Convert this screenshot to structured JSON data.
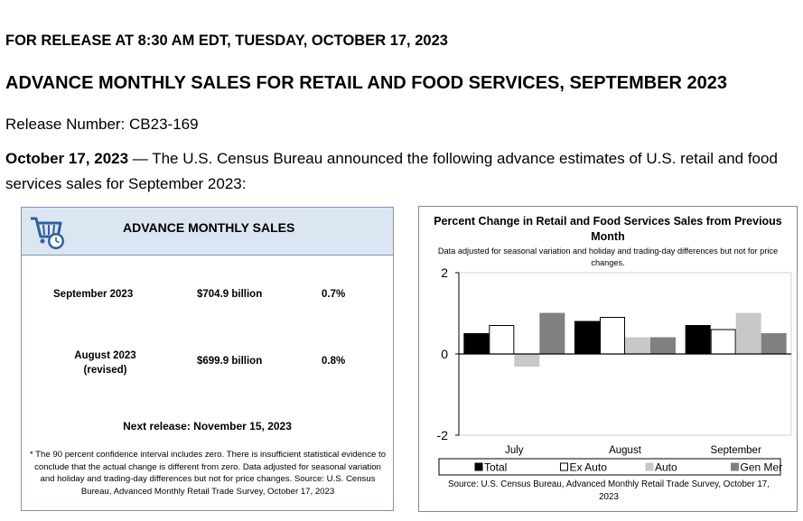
{
  "header": {
    "release_line": "FOR RELEASE AT 8:30 AM EDT, TUESDAY, OCTOBER 17, 2023",
    "title": "ADVANCE MONTHLY SALES FOR RETAIL AND FOOD SERVICES, SEPTEMBER 2023",
    "release_number": "Release Number: CB23-169",
    "intro_date": "October 17, 2023",
    "intro_text": " — The U.S. Census Bureau announced the following advance estimates of U.S. retail and food services sales for September 2023:"
  },
  "sales_box": {
    "title": "ADVANCE MONTHLY SALES",
    "rows": [
      {
        "period": "September 2023",
        "period_note": "",
        "amount": "$704.9 billion",
        "change": "0.7%"
      },
      {
        "period": "August 2023",
        "period_note": "(revised)",
        "amount": "$699.9 billion",
        "change": "0.8%"
      }
    ],
    "next_release": "Next release: November 15, 2023",
    "footnote": "* The 90 percent confidence interval includes zero. There is insufficient statistical evidence to conclude that the actual change is different from zero. Data adjusted for seasonal variation and holiday and trading-day differences but not for price changes. Source: U.S. Census Bureau, Advanced Monthly Retail Trade Survey, October 17, 2023"
  },
  "chart_panel": {
    "source": "Source: U.S. Census Bureau, Advanced Monthly Retail Trade Survey, October 17, 2023"
  },
  "chart_data": {
    "type": "bar",
    "title": "Percent Change in Retail and Food Services Sales from Previous Month",
    "subtitle": "Data adjusted for seasonal variation and holiday and trading-day differences but not for price changes.",
    "categories": [
      "July",
      "August",
      "September"
    ],
    "series": [
      {
        "name": "Total",
        "values": [
          0.5,
          0.8,
          0.7
        ],
        "fill": "#000000",
        "stroke": "#000000"
      },
      {
        "name": "Ex Auto",
        "values": [
          0.7,
          0.9,
          0.6
        ],
        "fill": "#ffffff",
        "stroke": "#000000"
      },
      {
        "name": "Auto",
        "values": [
          -0.3,
          0.4,
          1.0
        ],
        "fill": "#c8c8c8",
        "stroke": "#c8c8c8"
      },
      {
        "name": "Gen Mer",
        "values": [
          1.0,
          0.4,
          0.5
        ],
        "fill": "#808080",
        "stroke": "#808080"
      }
    ],
    "ylim": [
      -2,
      2
    ],
    "yticks": [
      2,
      0,
      -2
    ],
    "xlabel": "",
    "ylabel": "",
    "legend_position": "bottom"
  }
}
